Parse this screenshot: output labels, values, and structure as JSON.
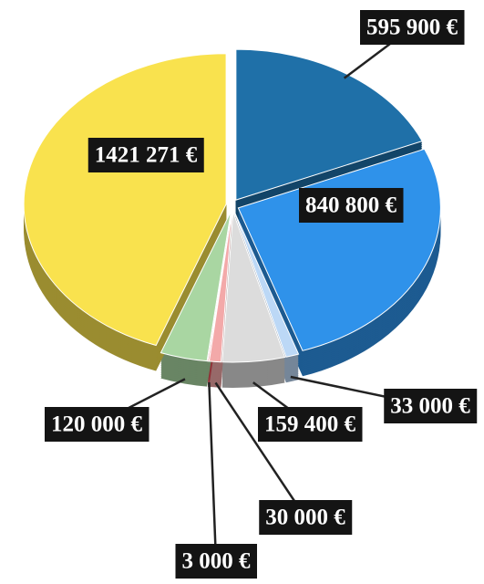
{
  "chart_data": {
    "type": "pie",
    "values": [
      595900,
      840800,
      33000,
      159400,
      30000,
      3000,
      120000,
      1421271
    ],
    "value_labels": [
      "595 900 €",
      "840 800 €",
      "33 000 €",
      "159 400 €",
      "30 000 €",
      "3 000 €",
      "120 000 €",
      "1421 271 €"
    ],
    "colors": [
      "#1f70a8",
      "#2f92ea",
      "#bcd8f6",
      "#dcdcdc",
      "#f3a9a9",
      "#e8505a",
      "#a9d6a2",
      "#f9e24e"
    ]
  }
}
